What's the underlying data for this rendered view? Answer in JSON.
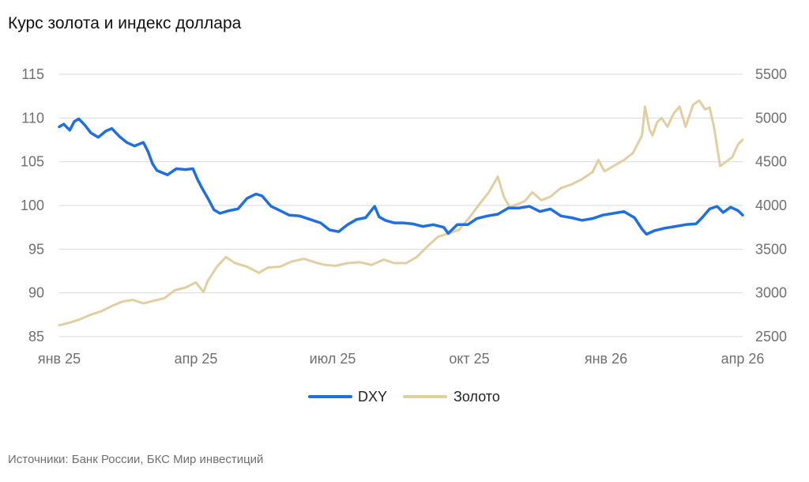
{
  "chart_data": {
    "type": "line",
    "title": "Курс золота и индекс доллара",
    "source": "Источники: Банк России, БКС Мир инвестиций",
    "x_ticks": [
      "янв 25",
      "апр 25",
      "июл 25",
      "окт 25",
      "янв 26",
      "апр 26"
    ],
    "x_range": [
      "2025-01-01",
      "2026-04-01"
    ],
    "y_left": {
      "ticks": [
        85,
        90,
        95,
        100,
        105,
        110,
        115
      ],
      "ylim": [
        85,
        115
      ]
    },
    "y_right": {
      "ticks": [
        2500,
        3000,
        3500,
        4000,
        4500,
        5000,
        5500
      ],
      "ylim": [
        2500,
        5500
      ]
    },
    "grid": true,
    "legend_position": "bottom",
    "series": [
      {
        "name": "DXY",
        "axis": "left",
        "color": "#1f6fe0",
        "x": [
          "2025-01-01",
          "2025-01-04",
          "2025-01-08",
          "2025-01-11",
          "2025-01-14",
          "2025-01-18",
          "2025-01-22",
          "2025-01-27",
          "2025-02-01",
          "2025-02-05",
          "2025-02-10",
          "2025-02-15",
          "2025-02-20",
          "2025-02-26",
          "2025-03-01",
          "2025-03-04",
          "2025-03-07",
          "2025-03-14",
          "2025-03-20",
          "2025-03-26",
          "2025-03-31",
          "2025-04-03",
          "2025-04-06",
          "2025-04-10",
          "2025-04-14",
          "2025-04-18",
          "2025-04-24",
          "2025-04-30",
          "2025-05-06",
          "2025-05-12",
          "2025-05-16",
          "2025-05-22",
          "2025-05-28",
          "2025-06-03",
          "2025-06-10",
          "2025-06-17",
          "2025-06-24",
          "2025-06-30",
          "2025-07-06",
          "2025-07-12",
          "2025-07-18",
          "2025-07-24",
          "2025-07-30",
          "2025-08-02",
          "2025-08-06",
          "2025-08-12",
          "2025-08-18",
          "2025-08-24",
          "2025-08-31",
          "2025-09-07",
          "2025-09-14",
          "2025-09-17",
          "2025-09-23",
          "2025-09-30",
          "2025-10-06",
          "2025-10-13",
          "2025-10-20",
          "2025-10-27",
          "2025-11-03",
          "2025-11-10",
          "2025-11-17",
          "2025-11-24",
          "2025-12-01",
          "2025-12-08",
          "2025-12-15",
          "2025-12-22",
          "2025-12-29",
          "2026-01-05",
          "2026-01-12",
          "2026-01-19",
          "2026-01-24",
          "2026-01-27",
          "2026-02-01",
          "2026-02-08",
          "2026-02-15",
          "2026-02-22",
          "2026-03-01",
          "2026-03-05",
          "2026-03-10",
          "2026-03-15",
          "2026-03-19",
          "2026-03-24",
          "2026-03-29",
          "2026-04-01"
        ],
        "values": [
          109.0,
          109.3,
          108.6,
          109.6,
          109.9,
          109.2,
          108.3,
          107.8,
          108.5,
          108.8,
          107.9,
          107.2,
          106.8,
          107.2,
          106.2,
          104.8,
          104.0,
          103.5,
          104.2,
          104.1,
          104.2,
          103.0,
          102.0,
          100.8,
          99.5,
          99.1,
          99.4,
          99.6,
          100.8,
          101.3,
          101.1,
          99.9,
          99.4,
          98.9,
          98.8,
          98.4,
          98.0,
          97.2,
          97.0,
          97.8,
          98.4,
          98.6,
          99.9,
          98.7,
          98.3,
          98.0,
          98.0,
          97.9,
          97.6,
          97.8,
          97.5,
          96.8,
          97.8,
          97.8,
          98.5,
          98.8,
          99.0,
          99.7,
          99.7,
          99.9,
          99.3,
          99.6,
          98.8,
          98.6,
          98.3,
          98.5,
          98.9,
          99.1,
          99.3,
          98.6,
          97.3,
          96.7,
          97.1,
          97.4,
          97.6,
          97.8,
          97.9,
          98.6,
          99.6,
          99.9,
          99.2,
          99.8,
          99.4,
          98.9
        ]
      },
      {
        "name": "Золото",
        "axis": "right",
        "color": "#e2cfa1",
        "x": [
          "2025-01-01",
          "2025-01-08",
          "2025-01-15",
          "2025-01-22",
          "2025-01-29",
          "2025-02-05",
          "2025-02-12",
          "2025-02-19",
          "2025-02-26",
          "2025-03-05",
          "2025-03-12",
          "2025-03-19",
          "2025-03-26",
          "2025-04-02",
          "2025-04-07",
          "2025-04-10",
          "2025-04-16",
          "2025-04-22",
          "2025-04-28",
          "2025-05-06",
          "2025-05-14",
          "2025-05-20",
          "2025-05-28",
          "2025-06-05",
          "2025-06-13",
          "2025-06-20",
          "2025-06-27",
          "2025-07-04",
          "2025-07-12",
          "2025-07-20",
          "2025-07-28",
          "2025-08-05",
          "2025-08-12",
          "2025-08-20",
          "2025-08-27",
          "2025-09-03",
          "2025-09-10",
          "2025-09-17",
          "2025-09-24",
          "2025-10-01",
          "2025-10-08",
          "2025-10-14",
          "2025-10-20",
          "2025-10-24",
          "2025-10-28",
          "2025-11-03",
          "2025-11-07",
          "2025-11-12",
          "2025-11-18",
          "2025-11-24",
          "2025-12-01",
          "2025-12-08",
          "2025-12-15",
          "2025-12-22",
          "2025-12-26",
          "2025-12-30",
          "2026-01-06",
          "2026-01-12",
          "2026-01-18",
          "2026-01-24",
          "2026-01-26",
          "2026-01-29",
          "2026-01-31",
          "2026-02-03",
          "2026-02-06",
          "2026-02-10",
          "2026-02-14",
          "2026-02-18",
          "2026-02-22",
          "2026-02-27",
          "2026-03-03",
          "2026-03-07",
          "2026-03-10",
          "2026-03-13",
          "2026-03-17",
          "2026-03-21",
          "2026-03-25",
          "2026-03-29",
          "2026-04-01"
        ],
        "values": [
          2630,
          2660,
          2700,
          2750,
          2790,
          2850,
          2900,
          2920,
          2880,
          2910,
          2940,
          3030,
          3060,
          3120,
          3010,
          3140,
          3300,
          3410,
          3340,
          3300,
          3230,
          3290,
          3300,
          3360,
          3390,
          3350,
          3320,
          3310,
          3340,
          3350,
          3320,
          3380,
          3340,
          3340,
          3410,
          3530,
          3640,
          3680,
          3720,
          3860,
          4020,
          4150,
          4330,
          4100,
          3980,
          4020,
          4050,
          4150,
          4060,
          4100,
          4200,
          4240,
          4300,
          4380,
          4520,
          4390,
          4460,
          4520,
          4600,
          4800,
          5130,
          4870,
          4800,
          4950,
          5000,
          4900,
          5050,
          5130,
          4900,
          5150,
          5200,
          5100,
          5120,
          4890,
          4450,
          4500,
          4550,
          4700,
          4750
        ]
      }
    ]
  }
}
